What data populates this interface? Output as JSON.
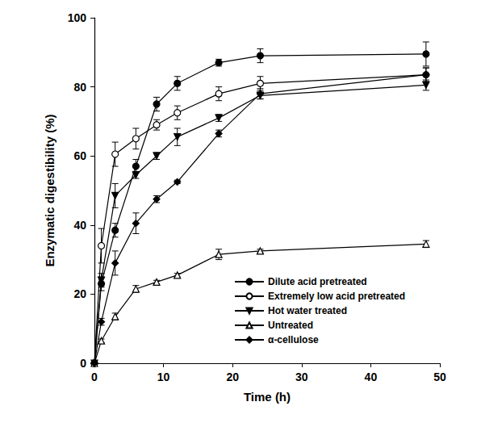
{
  "chart_data": {
    "type": "line",
    "x_label": "Time (h)",
    "y_label": "Enzymatic digestibility (%)",
    "xlim": [
      0,
      50
    ],
    "xticks": [
      0,
      10,
      20,
      30,
      40,
      50
    ],
    "ylim": [
      0,
      100
    ],
    "yticks": [
      0,
      20,
      40,
      60,
      80,
      100
    ],
    "x": [
      0,
      1,
      3,
      6,
      9,
      12,
      18,
      24,
      48
    ],
    "legend": "lower right",
    "series": [
      {
        "name": "Dilute acid pretreated",
        "color": "#000000",
        "marker": "circle",
        "values": [
          0,
          23,
          38.5,
          57,
          75,
          81,
          87,
          89,
          89.5
        ],
        "errors": [
          0,
          2,
          2,
          2,
          2,
          2,
          1,
          2,
          3.5
        ]
      },
      {
        "name": "Extremely low acid pretreated",
        "color": "#000000",
        "marker": "circle_open",
        "values": [
          0,
          34,
          60.5,
          65,
          69,
          72.5,
          78,
          81,
          83.5
        ],
        "errors": [
          0,
          5,
          3.5,
          3,
          1.5,
          2,
          2,
          2,
          2
        ]
      },
      {
        "name": "Hot water treated",
        "color": "#000000",
        "marker": "triangle_down",
        "values": [
          0,
          24,
          48.5,
          54.5,
          60,
          65.5,
          71,
          77.5,
          80.5
        ],
        "errors": [
          0,
          2,
          3.5,
          1,
          1,
          2.5,
          1,
          1,
          1.5
        ]
      },
      {
        "name": "Untreated",
        "color": "#000000",
        "marker": "triangle_open",
        "values": [
          0,
          6.5,
          13.5,
          21.5,
          23.5,
          25.5,
          31.5,
          32.5,
          34.5
        ],
        "errors": [
          0,
          0.5,
          1,
          1,
          0.5,
          0.5,
          1.5,
          0.5,
          1
        ]
      },
      {
        "name": "α-cellulose",
        "color": "#000000",
        "marker": "diamond",
        "values": [
          0,
          12,
          29,
          40.5,
          47.5,
          52.5,
          66.5,
          78,
          83.5
        ],
        "errors": [
          0,
          1,
          3.5,
          3,
          1,
          0.5,
          1,
          1.5,
          2
        ]
      }
    ]
  }
}
